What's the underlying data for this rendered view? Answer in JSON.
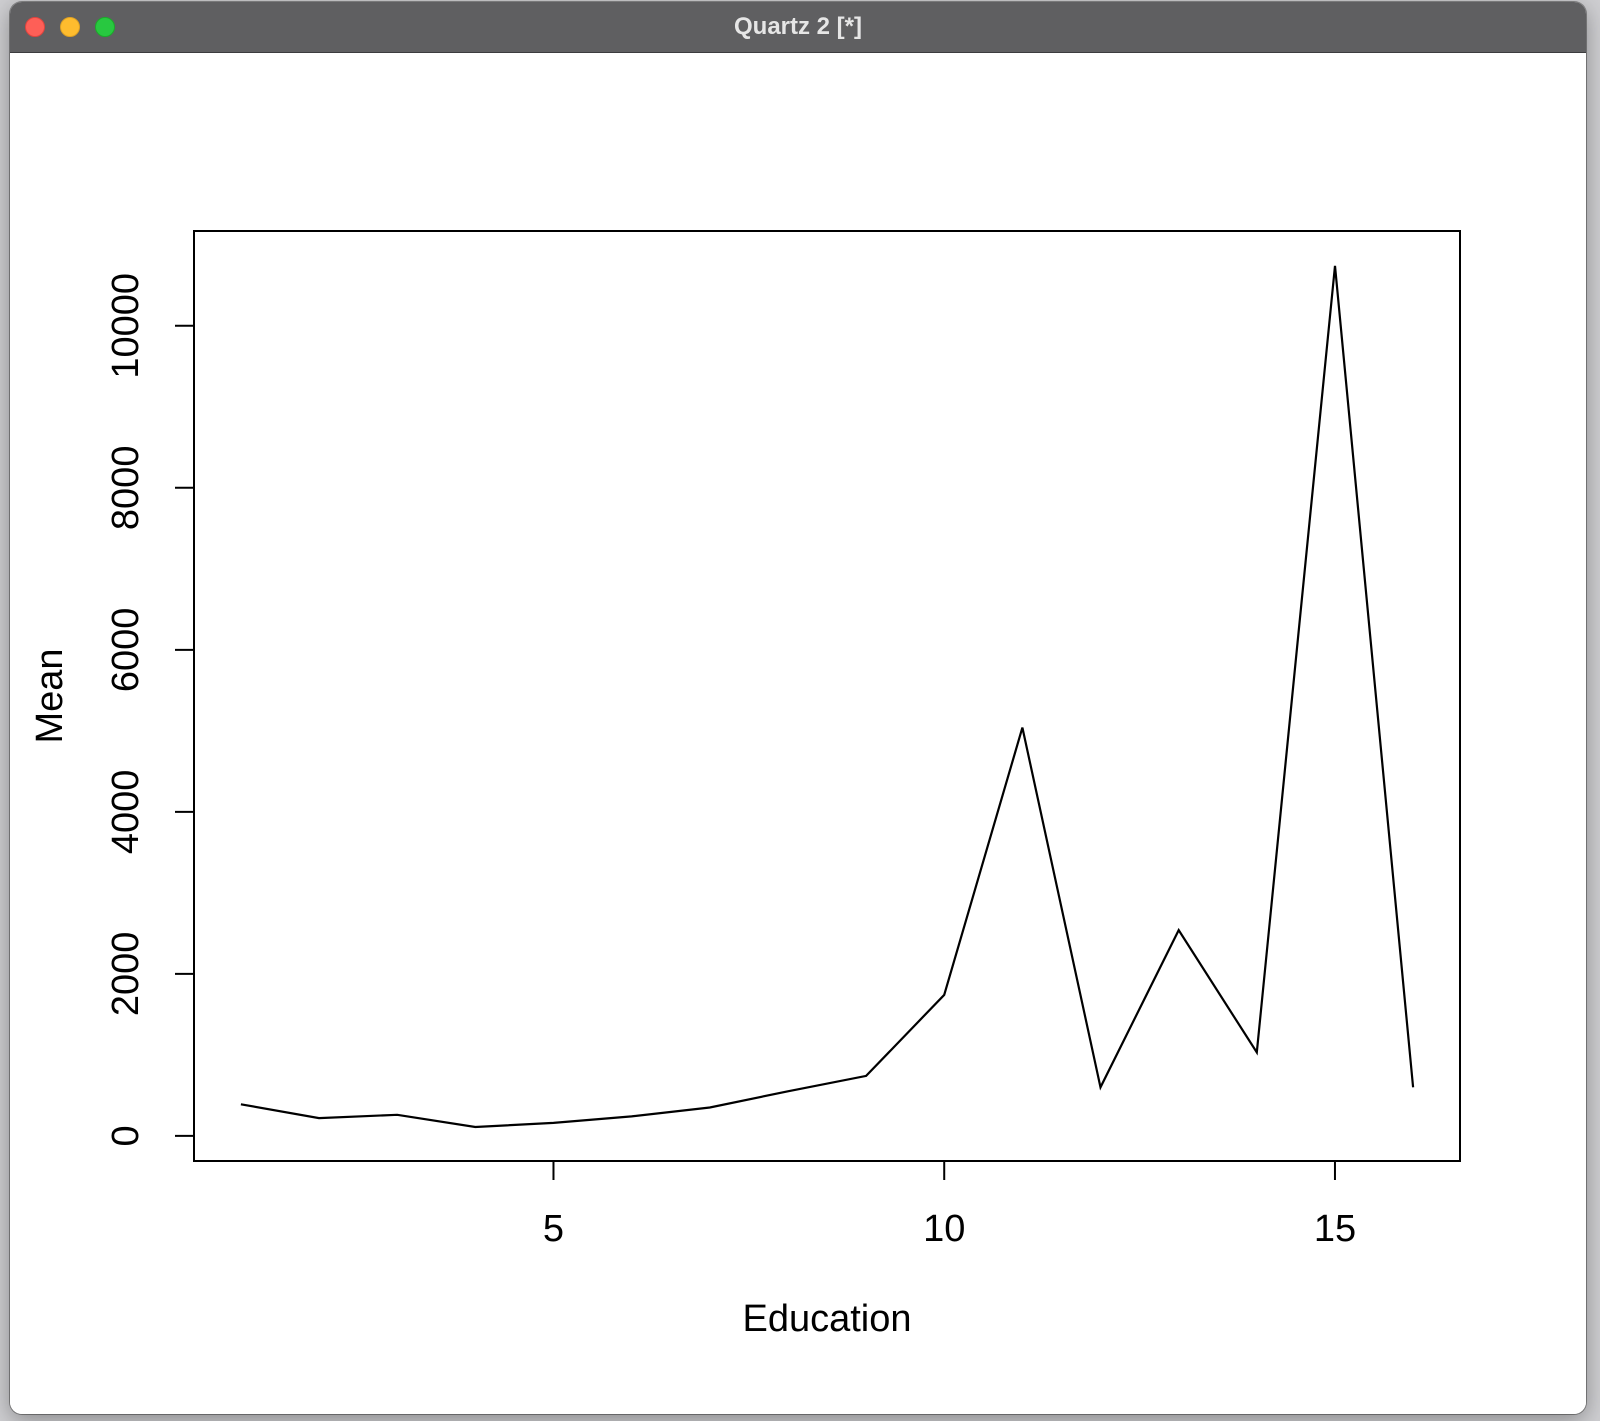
{
  "window": {
    "title": "Quartz 2 [*]",
    "controls": [
      "close",
      "minimize",
      "zoom"
    ],
    "colors": {
      "titlebar": "#5f5f61",
      "close": "#fe5f57",
      "minimize": "#febc2e",
      "zoom": "#28c840"
    }
  },
  "chart_data": {
    "type": "line",
    "title": "",
    "xlabel": "Education",
    "ylabel": "Mean",
    "x": [
      1,
      2,
      3,
      4,
      5,
      6,
      7,
      8,
      9,
      10,
      11,
      12,
      13,
      14,
      15,
      16
    ],
    "series": [
      {
        "values": [
          390,
          220,
          260,
          110,
          160,
          240,
          350,
          550,
          740,
          1740,
          5040,
          600,
          2540,
          1030,
          10740,
          600
        ],
        "color": "#000000"
      }
    ],
    "xlim": [
      0.4,
      16.6
    ],
    "ylim": [
      -310,
      11170
    ],
    "xticks": [
      5,
      10,
      15
    ],
    "yticks": [
      0,
      2000,
      4000,
      6000,
      8000,
      10000
    ],
    "grid": false,
    "legend": "none"
  }
}
